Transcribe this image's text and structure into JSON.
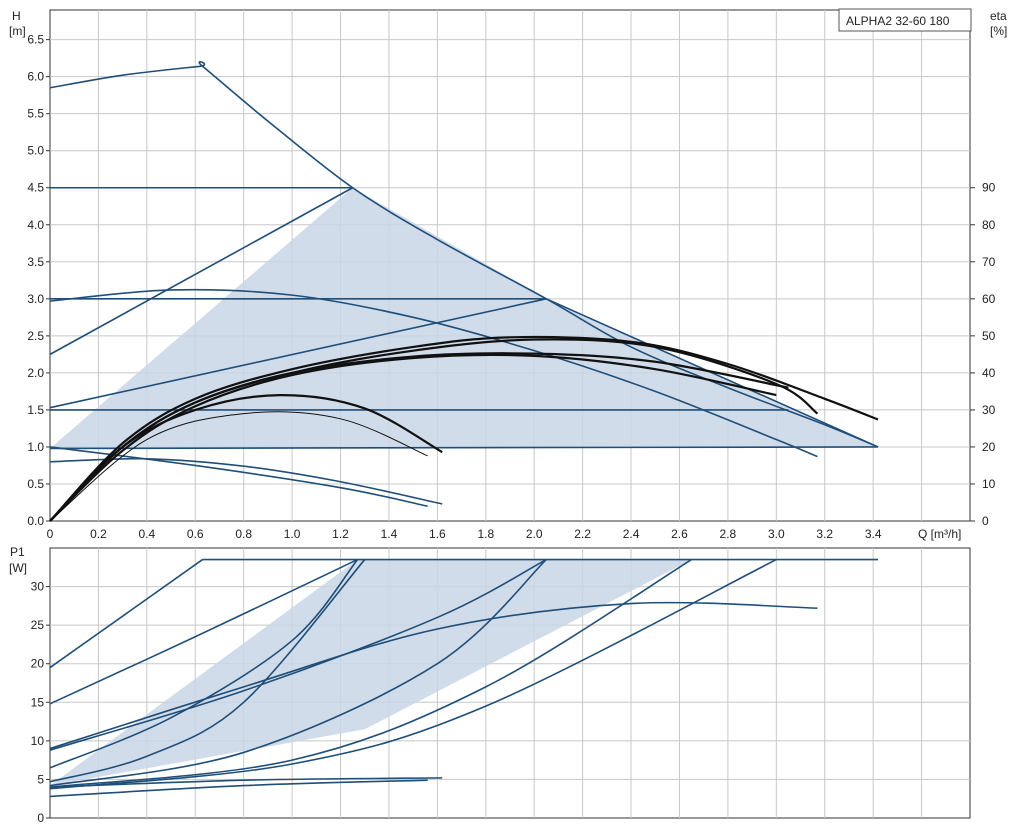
{
  "title_box": "ALPHA2 32-60 180",
  "colors": {
    "curve": "#1f4e79",
    "efficiency": "#111111",
    "shade": "#c9d6e6",
    "grid": "#c8c8c8"
  },
  "chart_data": [
    {
      "type": "line",
      "name": "head",
      "ylabel_line1": "H",
      "ylabel_line2": "[m]",
      "y2label_line1": "eta",
      "y2label_line2": "[%]",
      "xlabel": "Q [m³/h]",
      "xlim": [
        0,
        3.8
      ],
      "ylim": [
        0,
        6.9
      ],
      "y2lim": [
        0,
        138
      ],
      "x_ticks": [
        "0",
        "0.2",
        "0.4",
        "0.6",
        "0.8",
        "1.0",
        "1.2",
        "1.4",
        "1.6",
        "1.8",
        "2.0",
        "2.2",
        "2.4",
        "2.6",
        "2.8",
        "3.0",
        "3.2",
        "3.4"
      ],
      "y_ticks": [
        "0.0",
        "0.5",
        "1.0",
        "1.5",
        "2.0",
        "2.5",
        "3.0",
        "3.5",
        "4.0",
        "4.5",
        "5.0",
        "5.5",
        "6.0",
        "6.5"
      ],
      "y2_ticks": [
        "0",
        "10",
        "20",
        "30",
        "40",
        "50",
        "60",
        "70",
        "80",
        "90"
      ],
      "grid": true,
      "shaded_region": {
        "x": [
          0,
          1.25,
          2.05,
          3.42,
          0
        ],
        "y": [
          0.98,
          4.5,
          3.0,
          1.0,
          0.98
        ]
      },
      "series": [
        {
          "role": "curve",
          "x": [
            0,
            0.3,
            0.62,
            0.63,
            0.9,
            1.25,
            1.6,
            2.05,
            2.4,
            2.8,
            3.2,
            3.42
          ],
          "y": [
            5.85,
            6.02,
            6.14,
            6.14,
            5.4,
            4.5,
            3.8,
            3.0,
            2.35,
            1.8,
            1.3,
            1.0
          ]
        },
        {
          "role": "curve",
          "x": [
            0,
            1.25
          ],
          "y": [
            4.5,
            4.5
          ]
        },
        {
          "role": "curve",
          "x": [
            0,
            2.05
          ],
          "y": [
            3.0,
            3.0
          ]
        },
        {
          "role": "curve",
          "x": [
            0,
            3.05
          ],
          "y": [
            1.5,
            1.5
          ]
        },
        {
          "role": "curve",
          "x": [
            0,
            1.25
          ],
          "y": [
            2.25,
            4.5
          ]
        },
        {
          "role": "curve",
          "x": [
            0,
            2.05
          ],
          "y": [
            1.53,
            3.0
          ]
        },
        {
          "role": "curve",
          "x": [
            0,
            3.42
          ],
          "y": [
            0.98,
            1.0
          ]
        },
        {
          "role": "curve",
          "x": [
            2.05,
            3.42
          ],
          "y": [
            3.0,
            1.0
          ]
        },
        {
          "role": "curve",
          "x": [
            0,
            0.5,
            1.0,
            1.5,
            2.0,
            2.5,
            3.0,
            3.17
          ],
          "y": [
            2.97,
            3.12,
            3.05,
            2.75,
            2.3,
            1.75,
            1.1,
            0.87
          ]
        },
        {
          "role": "curve",
          "x": [
            0,
            0.4,
            0.8,
            1.2,
            1.62
          ],
          "y": [
            0.8,
            0.84,
            0.74,
            0.53,
            0.23
          ]
        },
        {
          "role": "curve",
          "x": [
            0,
            0.6,
            1.2,
            1.56
          ],
          "y": [
            1.0,
            0.75,
            0.45,
            0.2
          ]
        },
        {
          "role": "efficiency",
          "x": [
            0,
            0.3,
            0.6,
            1.0,
            1.5,
            1.9,
            2.4,
            2.8,
            3.2,
            3.42
          ],
          "y": [
            0.0,
            1.05,
            1.65,
            2.05,
            2.35,
            2.48,
            2.42,
            2.12,
            1.65,
            1.37
          ]
        },
        {
          "role": "efficiency",
          "x": [
            0,
            0.3,
            0.6,
            1.0,
            1.5,
            2.0,
            2.5,
            3.0,
            3.17
          ],
          "y": [
            0.0,
            1.0,
            1.6,
            2.0,
            2.3,
            2.45,
            2.35,
            1.85,
            1.45
          ]
        },
        {
          "role": "efficiency",
          "x": [
            0,
            0.3,
            0.6,
            1.0,
            1.5,
            2.0,
            2.5,
            3.05
          ],
          "y": [
            0.0,
            1.0,
            1.6,
            2.0,
            2.22,
            2.26,
            2.15,
            1.8
          ]
        },
        {
          "role": "efficiency",
          "x": [
            0,
            0.3,
            0.6,
            1.0,
            1.5,
            2.0,
            2.5,
            3.0
          ],
          "y": [
            0.0,
            0.95,
            1.55,
            1.97,
            2.2,
            2.23,
            2.05,
            1.7
          ]
        },
        {
          "role": "efficiency",
          "x": [
            0,
            0.3,
            0.6,
            0.95,
            1.3,
            1.62
          ],
          "y": [
            0.0,
            1.0,
            1.5,
            1.7,
            1.52,
            0.93
          ]
        },
        {
          "role": "efficiency-thin",
          "x": [
            0,
            0.4,
            0.8,
            1.2,
            1.56
          ],
          "y": [
            0.0,
            1.1,
            1.45,
            1.38,
            0.88
          ]
        }
      ]
    },
    {
      "type": "line",
      "name": "power",
      "ylabel_line1": "P1",
      "ylabel_line2": "[W]",
      "xlim": [
        0,
        3.8
      ],
      "ylim": [
        0,
        35
      ],
      "y_ticks": [
        "0",
        "5",
        "10",
        "15",
        "20",
        "25",
        "30"
      ],
      "grid": true,
      "shaded_region": {
        "x": [
          0,
          1.27,
          2.65,
          1.3,
          0
        ],
        "y": [
          4.2,
          33.5,
          33.5,
          11.5,
          4.2
        ]
      },
      "series": [
        {
          "role": "curve",
          "x": [
            0.63,
            3.42
          ],
          "y": [
            33.5,
            33.5
          ]
        },
        {
          "role": "curve",
          "x": [
            0,
            0.63
          ],
          "y": [
            19.5,
            33.5
          ]
        },
        {
          "role": "curve",
          "x": [
            0,
            0.6,
            1.27
          ],
          "y": [
            14.8,
            23.5,
            33.5
          ]
        },
        {
          "role": "curve",
          "x": [
            0,
            0.5,
            1.0,
            1.27
          ],
          "y": [
            6.5,
            13.0,
            23.0,
            33.5
          ]
        },
        {
          "role": "curve",
          "x": [
            0,
            0.4,
            0.8,
            1.3
          ],
          "y": [
            4.7,
            8.0,
            15.0,
            33.5
          ]
        },
        {
          "role": "curve",
          "x": [
            0,
            0.8,
            1.6,
            2.05
          ],
          "y": [
            8.8,
            16.5,
            26.0,
            33.5
          ]
        },
        {
          "role": "curve",
          "x": [
            0,
            0.8,
            1.6,
            2.05
          ],
          "y": [
            4.2,
            8.5,
            20.0,
            33.5
          ]
        },
        {
          "role": "curve",
          "x": [
            0,
            1.0,
            1.8,
            2.65
          ],
          "y": [
            4.0,
            7.5,
            17.0,
            33.5
          ]
        },
        {
          "role": "curve",
          "x": [
            0,
            1.0,
            1.8,
            3.0
          ],
          "y": [
            3.8,
            7.0,
            14.5,
            33.5
          ]
        },
        {
          "role": "curve",
          "x": [
            0,
            0.8,
            1.6,
            2.4,
            3.17
          ],
          "y": [
            9.0,
            17.0,
            24.5,
            27.8,
            27.2
          ]
        },
        {
          "role": "curve",
          "x": [
            0,
            0.8,
            1.62
          ],
          "y": [
            4.0,
            4.9,
            5.2
          ]
        },
        {
          "role": "curve",
          "x": [
            0,
            0.8,
            1.56
          ],
          "y": [
            2.8,
            4.2,
            4.9
          ]
        }
      ]
    }
  ]
}
